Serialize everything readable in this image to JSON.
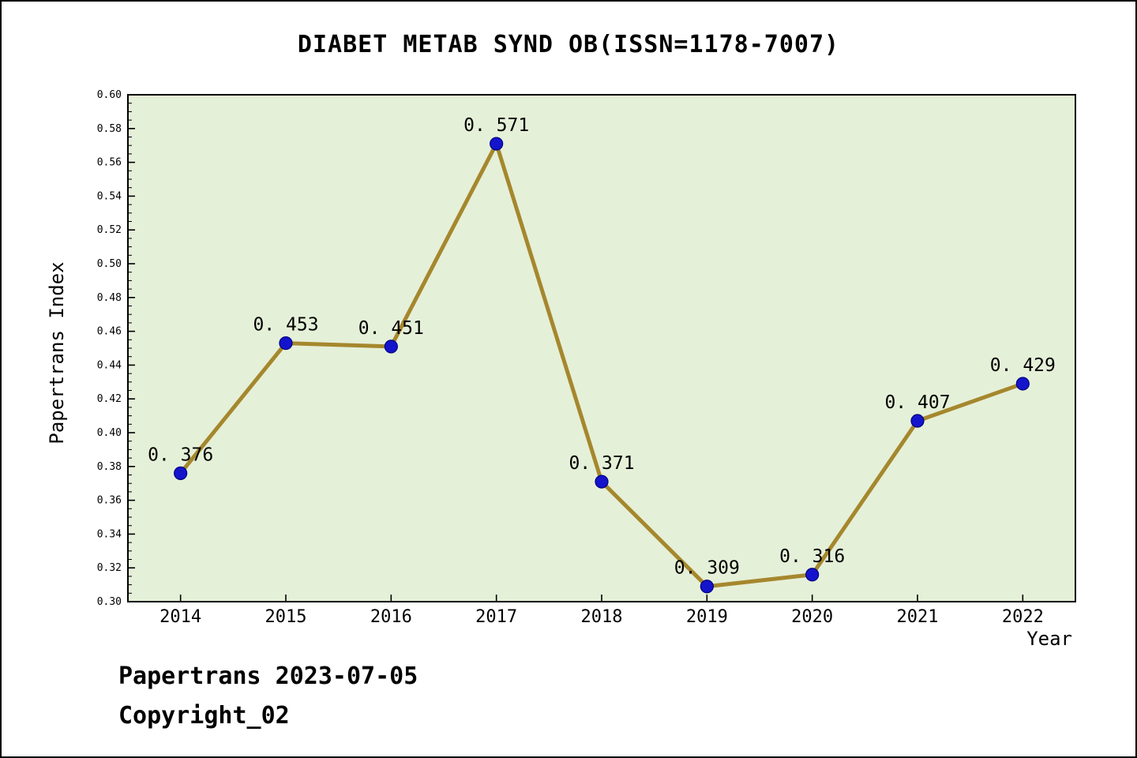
{
  "title": "DIABET METAB SYND OB(ISSN=1178-7007)",
  "footer": {
    "line1": "Papertrans 2023-07-05",
    "line2": "Copyright_02"
  },
  "chart_data": {
    "type": "line",
    "title": "DIABET METAB SYND OB(ISSN=1178-7007)",
    "xlabel": "Year",
    "ylabel": "Papertrans Index",
    "categories": [
      "2014",
      "2015",
      "2016",
      "2017",
      "2018",
      "2019",
      "2020",
      "2021",
      "2022"
    ],
    "x": [
      2014,
      2015,
      2016,
      2017,
      2018,
      2019,
      2020,
      2021,
      2022
    ],
    "series": [
      {
        "name": "Papertrans Index",
        "values": [
          0.376,
          0.453,
          0.451,
          0.571,
          0.371,
          0.309,
          0.316,
          0.407,
          0.429
        ]
      }
    ],
    "point_labels": [
      "0. 376",
      "0. 453",
      "0. 451",
      "0. 571",
      "0. 371",
      "0. 309",
      "0. 316",
      "0. 407",
      "0. 429"
    ],
    "xlim": [
      2013.5,
      2022.5
    ],
    "ylim": [
      0.3,
      0.6
    ],
    "y_tick_major_step": 0.02,
    "y_tick_minor_step": 0.005,
    "grid": "off",
    "legend": "none",
    "colors": {
      "line": "#a5872d",
      "marker": "#1414cc",
      "marker_edge": "#000080",
      "plot_bg": "#e5f0d8",
      "frame": "#000000"
    }
  }
}
